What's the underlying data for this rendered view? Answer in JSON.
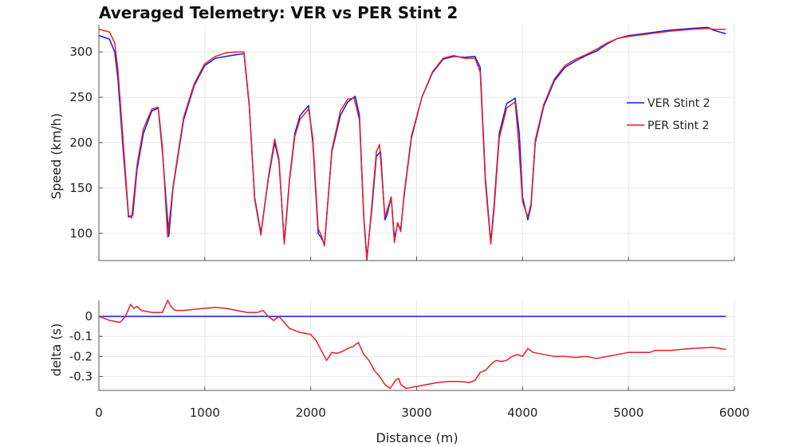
{
  "chart_data": {
    "title": "Averaged Telemetry: VER vs PER Stint 2",
    "colors": {
      "ver": "#0a1bf0",
      "per": "#ee1c25",
      "grid": "#e6e6e6",
      "axis": "#555555"
    },
    "legend": {
      "placement": "right",
      "entries": [
        "VER Stint 2",
        "PER Stint 2"
      ]
    },
    "xaxis": {
      "label": "Distance (m)",
      "lim": [
        0,
        6000
      ],
      "ticks": [
        0,
        1000,
        2000,
        3000,
        4000,
        5000,
        6000
      ],
      "tick_labels": [
        "0",
        "1000",
        "2000",
        "3000",
        "4000",
        "5000",
        "6000"
      ]
    },
    "panels": [
      {
        "type": "line",
        "ylabel": "Speed (km/h)",
        "ylim": [
          70,
          330
        ],
        "yticks": [
          100,
          150,
          200,
          250,
          300
        ],
        "ytick_labels": [
          "100",
          "150",
          "200",
          "250",
          "300"
        ],
        "grid": true,
        "series": [
          {
            "name": "VER Stint 2",
            "color": "#0a1bf0",
            "x": [
              0,
              100,
              150,
              180,
              230,
              280,
              320,
              360,
              420,
              500,
              560,
              600,
              660,
              700,
              800,
              900,
              1000,
              1100,
              1200,
              1300,
              1370,
              1420,
              1470,
              1530,
              1600,
              1660,
              1700,
              1750,
              1800,
              1850,
              1900,
              1980,
              2020,
              2070,
              2100,
              2130,
              2200,
              2280,
              2350,
              2420,
              2460,
              2500,
              2530,
              2580,
              2620,
              2660,
              2700,
              2720,
              2760,
              2790,
              2820,
              2850,
              2880,
              2950,
              3050,
              3150,
              3250,
              3350,
              3450,
              3550,
              3600,
              3650,
              3700,
              3730,
              3780,
              3850,
              3930,
              3970,
              4000,
              4050,
              4080,
              4120,
              4200,
              4300,
              4400,
              4500,
              4600,
              4700,
              4800,
              4900,
              5000,
              5200,
              5400,
              5600,
              5750,
              5800,
              5920
            ],
            "y": [
              318,
              314,
              300,
              270,
              190,
              118,
              120,
              170,
              210,
              235,
              238,
              190,
              97,
              150,
              225,
              263,
              285,
              293,
              295,
              297,
              298,
              240,
              140,
              100,
              160,
              200,
              180,
              90,
              160,
              210,
              230,
              241,
              200,
              100,
              95,
              88,
              190,
              230,
              245,
              251,
              230,
              120,
              73,
              130,
              185,
              190,
              115,
              120,
              140,
              95,
              110,
              105,
              140,
              205,
              250,
              277,
              292,
              295,
              294,
              295,
              283,
              160,
              90,
              130,
              210,
              243,
              249,
              210,
              140,
              115,
              130,
              200,
              240,
              268,
              283,
              290,
              296,
              301,
              309,
              315,
              318,
              321,
              324,
              326,
              327,
              324,
              320
            ]
          },
          {
            "name": "PER Stint 2",
            "color": "#ee1c25",
            "x": [
              0,
              100,
              150,
              180,
              230,
              280,
              310,
              360,
              420,
              500,
              560,
              600,
              650,
              700,
              800,
              900,
              1000,
              1100,
              1200,
              1300,
              1370,
              1420,
              1470,
              1530,
              1600,
              1660,
              1700,
              1750,
              1800,
              1850,
              1900,
              1980,
              2020,
              2070,
              2100,
              2130,
              2200,
              2280,
              2350,
              2410,
              2460,
              2500,
              2530,
              2580,
              2620,
              2650,
              2700,
              2720,
              2760,
              2790,
              2820,
              2850,
              2880,
              2950,
              3050,
              3150,
              3250,
              3350,
              3450,
              3550,
              3600,
              3650,
              3700,
              3730,
              3780,
              3850,
              3930,
              3960,
              4000,
              4050,
              4080,
              4120,
              4200,
              4300,
              4400,
              4500,
              4600,
              4700,
              4800,
              4900,
              5000,
              5200,
              5400,
              5600,
              5750,
              5800,
              5920
            ],
            "y": [
              325,
              322,
              310,
              280,
              200,
              120,
              117,
              175,
              215,
              237,
              239,
              195,
              96,
              152,
              228,
              265,
              287,
              295,
              299,
              300,
              300,
              242,
              138,
              98,
              162,
              204,
              182,
              88,
              158,
              207,
              226,
              237,
              205,
              105,
              98,
              86,
              192,
              235,
              248,
              249,
              225,
              118,
              70,
              135,
              190,
              198,
              118,
              125,
              140,
              90,
              112,
              102,
              142,
              207,
              250,
              278,
              293,
              296,
              293,
              293,
              278,
              155,
              88,
              125,
              205,
              238,
              245,
              205,
              135,
              118,
              133,
              203,
              242,
              270,
              285,
              292,
              297,
              303,
              310,
              315,
              317,
              320,
              323,
              325,
              326,
              325,
              325
            ]
          }
        ]
      },
      {
        "type": "line",
        "ylabel": "delta (s)",
        "ylim": [
          -0.37,
          0.08
        ],
        "yticks": [
          0,
          -0.1,
          -0.2,
          -0.3
        ],
        "ytick_labels": [
          "0",
          "-0.1",
          "-0.2",
          "-0.3"
        ],
        "grid": true,
        "series": [
          {
            "name": "VER Stint 2",
            "color": "#0a1bf0",
            "x": [
              0,
              5920
            ],
            "y": [
              0,
              0
            ]
          },
          {
            "name": "PER Stint 2",
            "color": "#ee1c25",
            "x": [
              0,
              100,
              200,
              250,
              300,
              330,
              360,
              400,
              500,
              600,
              650,
              680,
              720,
              800,
              900,
              1000,
              1100,
              1200,
              1300,
              1400,
              1500,
              1550,
              1600,
              1650,
              1700,
              1750,
              1800,
              1900,
              2000,
              2050,
              2100,
              2150,
              2200,
              2250,
              2300,
              2350,
              2400,
              2450,
              2500,
              2550,
              2600,
              2650,
              2700,
              2750,
              2800,
              2830,
              2850,
              2900,
              3000,
              3100,
              3200,
              3300,
              3400,
              3500,
              3550,
              3600,
              3650,
              3700,
              3750,
              3800,
              3850,
              3900,
              3950,
              4000,
              4050,
              4100,
              4200,
              4300,
              4400,
              4500,
              4600,
              4700,
              4800,
              4900,
              5000,
              5200,
              5250,
              5400,
              5600,
              5800,
              5920
            ],
            "y": [
              0,
              -0.02,
              -0.03,
              0.0,
              0.06,
              0.04,
              0.05,
              0.03,
              0.02,
              0.02,
              0.08,
              0.05,
              0.03,
              0.03,
              0.035,
              0.04,
              0.045,
              0.04,
              0.03,
              0.02,
              0.02,
              0.03,
              0.0,
              -0.02,
              0.0,
              -0.03,
              -0.06,
              -0.08,
              -0.09,
              -0.12,
              -0.17,
              -0.22,
              -0.18,
              -0.185,
              -0.175,
              -0.16,
              -0.15,
              -0.13,
              -0.19,
              -0.22,
              -0.27,
              -0.3,
              -0.34,
              -0.36,
              -0.32,
              -0.31,
              -0.34,
              -0.36,
              -0.35,
              -0.34,
              -0.33,
              -0.325,
              -0.325,
              -0.33,
              -0.32,
              -0.28,
              -0.27,
              -0.24,
              -0.22,
              -0.225,
              -0.22,
              -0.2,
              -0.19,
              -0.2,
              -0.16,
              -0.18,
              -0.19,
              -0.2,
              -0.2,
              -0.205,
              -0.2,
              -0.21,
              -0.2,
              -0.19,
              -0.18,
              -0.18,
              -0.17,
              -0.17,
              -0.16,
              -0.155,
              -0.165
            ]
          }
        ]
      }
    ]
  }
}
